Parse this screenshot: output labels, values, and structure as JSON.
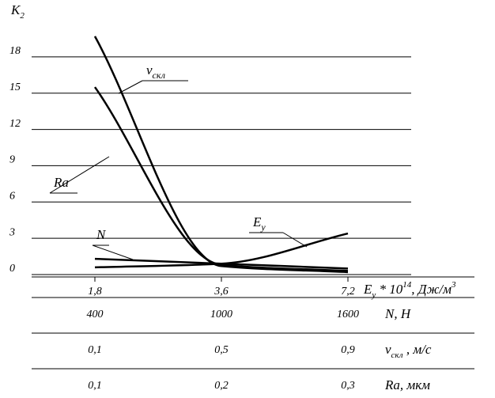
{
  "chart_data": {
    "type": "line",
    "ylabel": {
      "text": "K",
      "sub": "2"
    },
    "ylim": [
      0,
      21
    ],
    "yticks": [
      0,
      3,
      6,
      9,
      12,
      15,
      18
    ],
    "grid": true,
    "categories": [
      "1,8",
      "3,6",
      "7,2"
    ],
    "xlabel": {
      "text": "E",
      "sub": "y",
      "mid": " * 10",
      "sup": "14",
      "rest": ", Дж/м",
      "sup2": "3"
    },
    "x_axes": [
      {
        "label": "N, H",
        "ticks": [
          400,
          1000,
          1600
        ]
      },
      {
        "label": {
          "text": "v",
          "sub": "скл",
          "rest": " , м/с"
        },
        "ticks": [
          "0,1",
          "0,5",
          "0,9"
        ]
      },
      {
        "label": "Ra, мкм",
        "ticks": [
          "0,1",
          "0,2",
          "0,3"
        ]
      }
    ],
    "series": [
      {
        "name": "v",
        "name_sub": "скл",
        "color": "#000",
        "values": [
          19.7,
          0.7,
          0.2
        ]
      },
      {
        "name": "Ra",
        "color": "#000",
        "values": [
          15.5,
          0.8,
          0.3
        ]
      },
      {
        "name": "N",
        "color": "#000",
        "values": [
          1.3,
          0.9,
          0.5
        ]
      },
      {
        "name": "E",
        "name_sub": "y",
        "color": "#000",
        "values": [
          0.6,
          0.9,
          3.4
        ]
      }
    ]
  }
}
